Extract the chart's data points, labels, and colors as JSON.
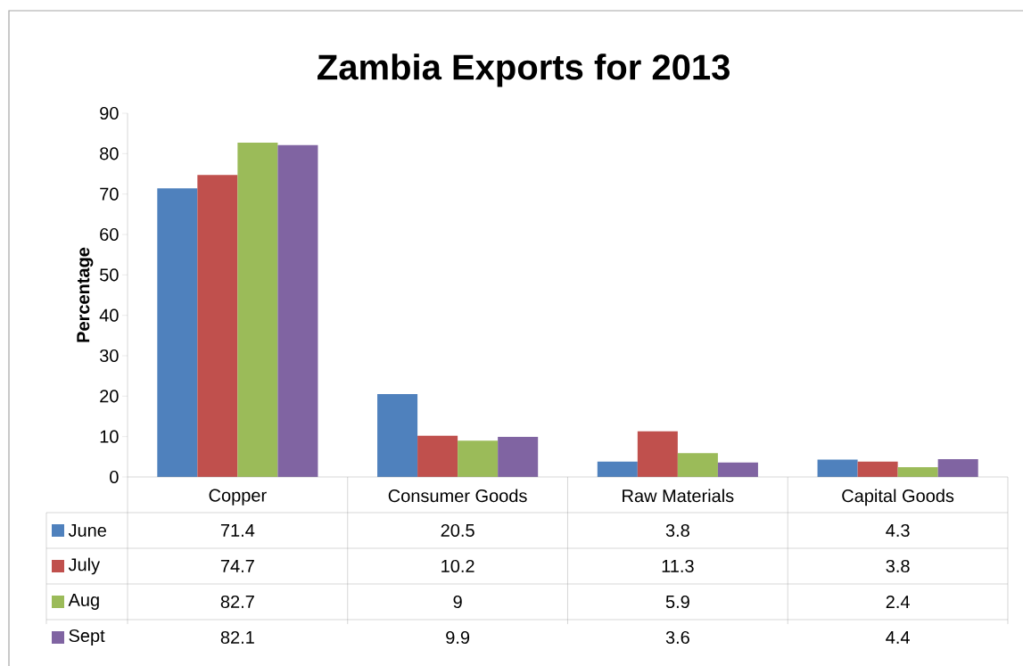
{
  "chart_data": {
    "type": "bar",
    "title": "Zambia Exports for 2013",
    "ylabel": "Percentage",
    "categories": [
      "Copper",
      "Consumer Goods",
      "Raw Materials",
      "Capital Goods"
    ],
    "series": [
      {
        "name": "June",
        "color": "#4f81bd",
        "values": [
          71.4,
          20.5,
          3.8,
          4.3
        ]
      },
      {
        "name": "July",
        "color": "#c0504d",
        "values": [
          74.7,
          10.2,
          11.3,
          3.8
        ]
      },
      {
        "name": "Aug",
        "color": "#9bbb59",
        "values": [
          82.7,
          9,
          5.9,
          2.4
        ]
      },
      {
        "name": "Sept",
        "color": "#8064a2",
        "values": [
          82.1,
          9.9,
          3.6,
          4.4
        ]
      }
    ],
    "ylim": [
      0,
      90
    ],
    "yticks": [
      0,
      10,
      20,
      30,
      40,
      50,
      60,
      70,
      80,
      90
    ],
    "grid": false,
    "legend": "bottom",
    "data_labels": true
  }
}
